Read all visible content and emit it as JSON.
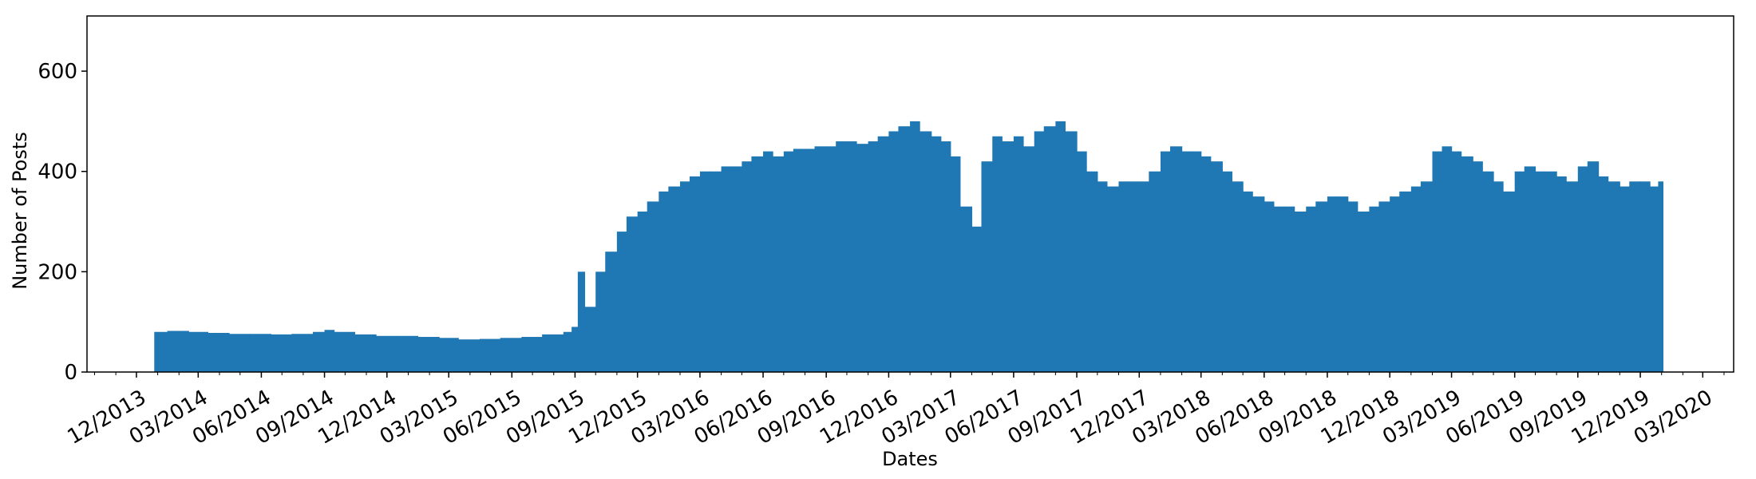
{
  "chart_data": {
    "type": "bar",
    "xlabel": "Dates",
    "ylabel": "Number of Posts",
    "ylim": [
      0,
      710
    ],
    "xlim": [
      "2013-09-20",
      "2020-04-15"
    ],
    "grid": false,
    "bar_color": "#1f77b4",
    "y_ticks": [
      0,
      200,
      400,
      600
    ],
    "x_ticks": [
      {
        "date": "2013-12-01",
        "label": "12/2013"
      },
      {
        "date": "2014-03-01",
        "label": "03/2014"
      },
      {
        "date": "2014-06-01",
        "label": "06/2014"
      },
      {
        "date": "2014-09-01",
        "label": "09/2014"
      },
      {
        "date": "2014-12-01",
        "label": "12/2014"
      },
      {
        "date": "2015-03-01",
        "label": "03/2015"
      },
      {
        "date": "2015-06-01",
        "label": "06/2015"
      },
      {
        "date": "2015-09-01",
        "label": "09/2015"
      },
      {
        "date": "2015-12-01",
        "label": "12/2015"
      },
      {
        "date": "2016-03-01",
        "label": "03/2016"
      },
      {
        "date": "2016-06-01",
        "label": "06/2016"
      },
      {
        "date": "2016-09-01",
        "label": "09/2016"
      },
      {
        "date": "2016-12-01",
        "label": "12/2016"
      },
      {
        "date": "2017-03-01",
        "label": "03/2017"
      },
      {
        "date": "2017-06-01",
        "label": "06/2017"
      },
      {
        "date": "2017-09-01",
        "label": "09/2017"
      },
      {
        "date": "2017-12-01",
        "label": "12/2017"
      },
      {
        "date": "2018-03-01",
        "label": "03/2018"
      },
      {
        "date": "2018-06-01",
        "label": "06/2018"
      },
      {
        "date": "2018-09-01",
        "label": "09/2018"
      },
      {
        "date": "2018-12-01",
        "label": "12/2018"
      },
      {
        "date": "2019-03-01",
        "label": "03/2019"
      },
      {
        "date": "2019-06-01",
        "label": "06/2019"
      },
      {
        "date": "2019-09-01",
        "label": "09/2019"
      },
      {
        "date": "2019-12-01",
        "label": "12/2019"
      },
      {
        "date": "2020-03-01",
        "label": "03/2020"
      }
    ],
    "series": [
      {
        "x": [
          "2013-12-27",
          "2014-01-15",
          "2014-02-15",
          "2014-03-15",
          "2014-04-15",
          "2014-05-15",
          "2014-06-15",
          "2014-07-15",
          "2014-08-15",
          "2014-09-01",
          "2014-09-15",
          "2014-10-15",
          "2014-11-15",
          "2014-12-15",
          "2015-01-15",
          "2015-02-15",
          "2015-03-15",
          "2015-04-15",
          "2015-05-15",
          "2015-06-15",
          "2015-07-15",
          "2015-08-15",
          "2015-08-27",
          "2015-09-05",
          "2015-09-15",
          "2015-10-01",
          "2015-10-15",
          "2015-11-01",
          "2015-11-15",
          "2015-12-01",
          "2015-12-15",
          "2016-01-01",
          "2016-01-15",
          "2016-02-01",
          "2016-02-15",
          "2016-03-01",
          "2016-03-15",
          "2016-04-01",
          "2016-04-15",
          "2016-05-01",
          "2016-05-15",
          "2016-06-01",
          "2016-06-15",
          "2016-07-01",
          "2016-07-15",
          "2016-08-01",
          "2016-08-15",
          "2016-09-01",
          "2016-09-15",
          "2016-10-01",
          "2016-10-15",
          "2016-11-01",
          "2016-11-15",
          "2016-12-01",
          "2016-12-15",
          "2017-01-01",
          "2017-01-15",
          "2017-02-01",
          "2017-02-15",
          "2017-03-01",
          "2017-03-15",
          "2017-04-01",
          "2017-04-15",
          "2017-05-01",
          "2017-05-15",
          "2017-06-01",
          "2017-06-15",
          "2017-07-01",
          "2017-07-15",
          "2017-08-01",
          "2017-08-15",
          "2017-09-01",
          "2017-09-15",
          "2017-10-01",
          "2017-10-15",
          "2017-11-01",
          "2017-11-15",
          "2017-12-01",
          "2017-12-15",
          "2018-01-01",
          "2018-01-15",
          "2018-02-01",
          "2018-02-15",
          "2018-03-01",
          "2018-03-15",
          "2018-04-01",
          "2018-04-15",
          "2018-05-01",
          "2018-05-15",
          "2018-06-01",
          "2018-06-15",
          "2018-07-01",
          "2018-07-15",
          "2018-08-01",
          "2018-08-15",
          "2018-09-01",
          "2018-09-15",
          "2018-10-01",
          "2018-10-15",
          "2018-11-01",
          "2018-11-15",
          "2018-12-01",
          "2018-12-15",
          "2019-01-01",
          "2019-01-15",
          "2019-02-01",
          "2019-02-15",
          "2019-03-01",
          "2019-03-15",
          "2019-04-01",
          "2019-04-15",
          "2019-05-01",
          "2019-05-15",
          "2019-06-01",
          "2019-06-15",
          "2019-07-01",
          "2019-07-15",
          "2019-08-01",
          "2019-08-15",
          "2019-09-01",
          "2019-09-15",
          "2019-10-01",
          "2019-10-15",
          "2019-11-01",
          "2019-11-15",
          "2019-12-01",
          "2019-12-15",
          "2019-12-27"
        ],
        "values": [
          80,
          82,
          80,
          78,
          76,
          76,
          75,
          76,
          80,
          84,
          80,
          75,
          72,
          72,
          70,
          68,
          65,
          66,
          68,
          70,
          75,
          80,
          90,
          200,
          130,
          200,
          240,
          280,
          310,
          320,
          340,
          360,
          370,
          380,
          390,
          400,
          400,
          410,
          410,
          420,
          430,
          440,
          430,
          440,
          445,
          445,
          450,
          450,
          460,
          460,
          455,
          460,
          470,
          480,
          490,
          500,
          480,
          470,
          460,
          430,
          330,
          290,
          420,
          470,
          460,
          470,
          450,
          480,
          490,
          500,
          480,
          440,
          400,
          380,
          370,
          380,
          380,
          380,
          400,
          440,
          450,
          440,
          440,
          430,
          420,
          400,
          380,
          360,
          350,
          340,
          330,
          330,
          320,
          330,
          340,
          350,
          350,
          340,
          320,
          330,
          340,
          350,
          360,
          370,
          380,
          440,
          450,
          440,
          430,
          420,
          400,
          380,
          360,
          400,
          410,
          400,
          400,
          390,
          380,
          410,
          420,
          390,
          380,
          370,
          380,
          380,
          370,
          380
        ]
      }
    ]
  }
}
